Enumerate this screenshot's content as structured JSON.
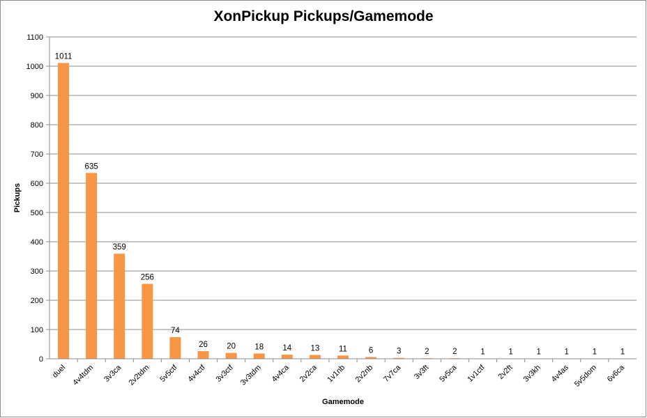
{
  "chart_data": {
    "type": "bar",
    "title": "XonPickup Pickups/Gamemode",
    "xlabel": "Gamemode",
    "ylabel": "Pickups",
    "ylim": [
      0,
      1100
    ],
    "y_ticks": [
      0,
      100,
      200,
      300,
      400,
      500,
      600,
      700,
      800,
      900,
      1000,
      1100
    ],
    "grid": true,
    "legend": "none",
    "bar_color": "#f79646",
    "categories": [
      "duel",
      "4v4tdm",
      "3v3ca",
      "2v2tdm",
      "5v5ctf",
      "4v4ctf",
      "3v3ctf",
      "3v3tdm",
      "4v4ca",
      "2v2ca",
      "1v1nb",
      "2v2nb",
      "7v7ca",
      "3v3ft",
      "5v5ca",
      "1v1ctf",
      "2v2ft",
      "3v3kh",
      "4v4as",
      "5v5dom",
      "6v6ca"
    ],
    "values": [
      1011,
      635,
      359,
      256,
      74,
      26,
      20,
      18,
      14,
      13,
      11,
      6,
      3,
      2,
      2,
      1,
      1,
      1,
      1,
      1,
      1
    ]
  }
}
